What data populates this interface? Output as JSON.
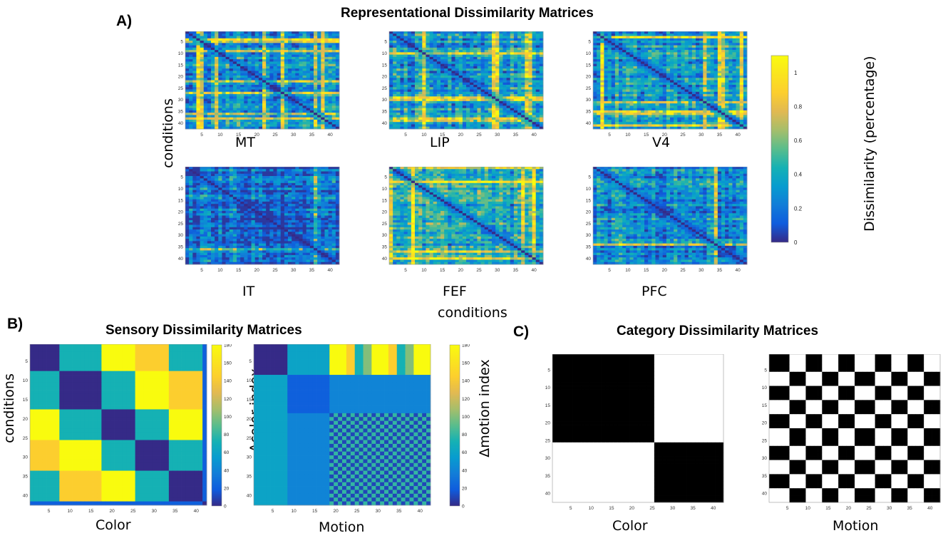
{
  "panel_a": {
    "letter": "A)",
    "title": "Representational Dissimilarity Matrices",
    "ylabel": "conditions",
    "xlabel": "conditions",
    "colorbar": {
      "label": "Dissimilarity (percentage)",
      "ticks": [
        "0",
        "0.2",
        "0.4",
        "0.6",
        "0.8",
        "1"
      ]
    }
  },
  "panel_b": {
    "letter": "B)",
    "title": "Sensory Dissimilarity Matrices",
    "ylabel": "conditions",
    "color_cb_label": "Δcolor index",
    "motion_cb_label": "Δmotion index",
    "cb_ticks": [
      "0",
      "20",
      "40",
      "60",
      "80",
      "100",
      "120",
      "140",
      "160",
      "180"
    ]
  },
  "panel_c": {
    "letter": "C)",
    "title": "Category Dissimilarity Matrices"
  },
  "chart_data": [
    {
      "type": "heatmap",
      "title": "MT",
      "n": 42,
      "colormap": "parula",
      "clim": [
        0,
        1.1
      ],
      "x_ticks": [
        5,
        10,
        15,
        20,
        25,
        30,
        35,
        40
      ],
      "y_ticks": [
        5,
        10,
        15,
        20,
        25,
        30,
        35,
        40
      ],
      "diagonal": 0,
      "off_diagonal_typical": 0.3,
      "high_dissimilarity_conditions": [
        4,
        5,
        9,
        22,
        27,
        36,
        38
      ]
    },
    {
      "type": "heatmap",
      "title": "LIP",
      "n": 42,
      "colormap": "parula",
      "clim": [
        0,
        1.1
      ],
      "x_ticks": [
        5,
        10,
        15,
        20,
        25,
        30,
        35,
        40
      ],
      "y_ticks": [
        5,
        10,
        15,
        20,
        25,
        30,
        35,
        40
      ],
      "diagonal": 0,
      "off_diagonal_typical": 0.35,
      "high_dissimilarity_conditions": [
        10,
        29,
        30,
        38,
        39
      ]
    },
    {
      "type": "heatmap",
      "title": "V4",
      "n": 42,
      "colormap": "parula",
      "clim": [
        0,
        1.1
      ],
      "x_ticks": [
        5,
        10,
        15,
        20,
        25,
        30,
        35,
        40
      ],
      "y_ticks": [
        5,
        10,
        15,
        20,
        25,
        30,
        35,
        40
      ],
      "diagonal": 0,
      "off_diagonal_typical": 0.35,
      "high_dissimilarity_conditions": [
        3,
        31,
        35,
        36,
        41
      ]
    },
    {
      "type": "heatmap",
      "title": "IT",
      "n": 42,
      "colormap": "parula",
      "clim": [
        0,
        1.1
      ],
      "x_ticks": [
        5,
        10,
        15,
        20,
        25,
        30,
        35,
        40
      ],
      "y_ticks": [
        5,
        10,
        15,
        20,
        25,
        30,
        35,
        40
      ],
      "diagonal": 0,
      "off_diagonal_typical": 0.15,
      "high_dissimilarity_conditions": [
        36
      ]
    },
    {
      "type": "heatmap",
      "title": "FEF",
      "n": 42,
      "colormap": "parula",
      "clim": [
        0,
        1.1
      ],
      "x_ticks": [
        5,
        10,
        15,
        20,
        25,
        30,
        35,
        40
      ],
      "y_ticks": [
        5,
        10,
        15,
        20,
        25,
        30,
        35,
        40
      ],
      "diagonal": 0,
      "off_diagonal_typical": 0.4,
      "high_dissimilarity_conditions": [
        1,
        7,
        37,
        40
      ]
    },
    {
      "type": "heatmap",
      "title": "PFC",
      "n": 42,
      "colormap": "parula",
      "clim": [
        0,
        1.1
      ],
      "x_ticks": [
        5,
        10,
        15,
        20,
        25,
        30,
        35,
        40
      ],
      "y_ticks": [
        5,
        10,
        15,
        20,
        25,
        30,
        35,
        40
      ],
      "diagonal": 0,
      "off_diagonal_typical": 0.3,
      "high_dissimilarity_conditions": [
        34
      ]
    },
    {
      "type": "heatmap",
      "title": "Color",
      "n": 42,
      "colormap": "parula",
      "clim": [
        0,
        180
      ],
      "x_ticks": [
        5,
        10,
        15,
        20,
        25,
        30,
        35,
        40
      ],
      "y_ticks": [
        5,
        10,
        15,
        20,
        25,
        30,
        35,
        40
      ],
      "colorbar_label": "Δcolor index",
      "color_groups_values": [
        0,
        72,
        180,
        144,
        72
      ],
      "block_bounds": [
        1,
        8,
        18,
        26,
        34,
        42
      ]
    },
    {
      "type": "heatmap",
      "title": "Motion",
      "n": 42,
      "colormap": "parula",
      "clim": [
        0,
        180
      ],
      "x_ticks": [
        5,
        10,
        15,
        20,
        25,
        30,
        35,
        40
      ],
      "y_ticks": [
        5,
        10,
        15,
        20,
        25,
        30,
        35,
        40
      ],
      "colorbar_label": "Δmotion index",
      "motion_levels": [
        0,
        72,
        180,
        144,
        72
      ],
      "stripe_pattern": "checkerboard in lower-right block"
    },
    {
      "type": "heatmap",
      "title": "Color",
      "n": 42,
      "colormap": "binary",
      "x_ticks": [
        5,
        10,
        15,
        20,
        25,
        30,
        35,
        40
      ],
      "y_ticks": [
        5,
        10,
        15,
        20,
        25,
        30,
        35,
        40
      ],
      "category_boundary": 25,
      "same_category": "black",
      "different_category": "white"
    },
    {
      "type": "heatmap",
      "title": "Motion",
      "n": 42,
      "colormap": "binary",
      "x_ticks": [
        5,
        10,
        15,
        20,
        25,
        30,
        35,
        40
      ],
      "y_ticks": [
        5,
        10,
        15,
        20,
        25,
        30,
        35,
        40
      ],
      "pattern": "checkerboard",
      "same_category": "black",
      "different_category": "white"
    }
  ]
}
